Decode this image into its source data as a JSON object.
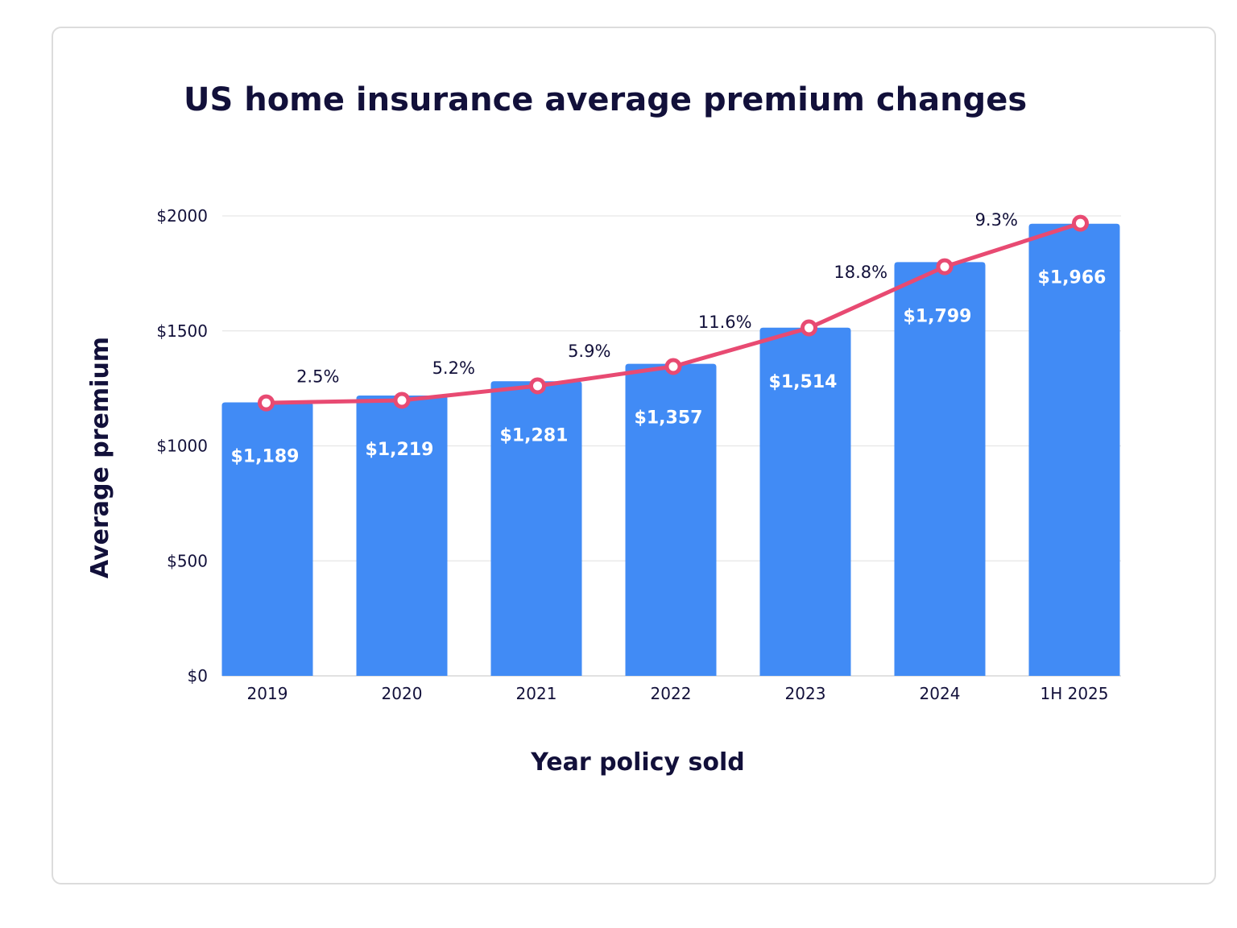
{
  "chart_data": {
    "type": "bar",
    "title": "US home insurance average premium changes",
    "xlabel": "Year policy sold",
    "ylabel": "Average premium",
    "categories": [
      "2019",
      "2020",
      "2021",
      "2022",
      "2023",
      "2024",
      "1H 2025"
    ],
    "values": [
      1189,
      1219,
      1281,
      1357,
      1514,
      1799,
      1966
    ],
    "value_labels": [
      "$1,189",
      "$1,219",
      "$1,281",
      "$1,357",
      "$1,514",
      "$1,799",
      "$1,966"
    ],
    "line_series": {
      "values": [
        1187,
        1198,
        1261,
        1345,
        1513,
        1779,
        1968
      ],
      "change_labels": [
        "2.5%",
        "5.2%",
        "5.9%",
        "11.6%",
        "18.8%",
        "9.3%"
      ]
    },
    "ylim": [
      0,
      2000
    ],
    "yticks": [
      0,
      500,
      1000,
      1500,
      2000
    ],
    "ytick_labels": [
      "$0",
      "$500",
      "$1000",
      "$1500",
      "$2000"
    ],
    "grid": true,
    "colors": {
      "bar": "#418bf5",
      "line": "#e84a72",
      "text": "#12103a",
      "grid": "#e6e6e6"
    }
  }
}
